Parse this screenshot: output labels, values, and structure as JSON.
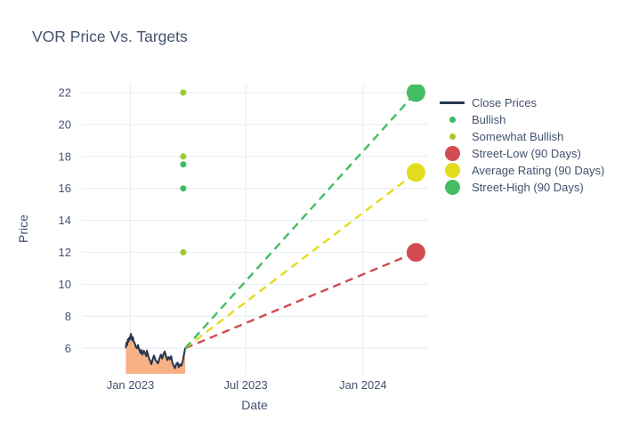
{
  "header": {
    "title": "VOR Price Vs. Targets"
  },
  "colors": {
    "text": "#42526e",
    "grid": "#e9eef6",
    "close_line": "#253650",
    "close_fill": "#f7b184",
    "bullish": "#3fbb5f",
    "somewhat_bullish": "#9fc929",
    "street_low": "#d24b51",
    "average_rating": "#e3dc1c",
    "street_high": "#42bd63"
  },
  "legend": {
    "items": [
      {
        "label": "Close Prices",
        "marker": "line",
        "color": "#253650"
      },
      {
        "label": "Bullish",
        "marker": "dot-small",
        "color": "#3fbb5f"
      },
      {
        "label": "Somewhat Bullish",
        "marker": "dot-small",
        "color": "#9fc929"
      },
      {
        "label": "Street-Low (90 Days)",
        "marker": "dot-large",
        "color": "#d24b51"
      },
      {
        "label": "Average Rating (90 Days)",
        "marker": "dot-large",
        "color": "#e3dc1c"
      },
      {
        "label": "Street-High (90 Days)",
        "marker": "dot-large",
        "color": "#42bd63"
      }
    ]
  },
  "chart_data": {
    "type": "line",
    "title": "VOR Price Vs. Targets",
    "xlabel": "Date",
    "ylabel": "Price",
    "grid": true,
    "legend_position": "right",
    "x_axis": {
      "unit": "days since 2023-01-01",
      "range": [
        -76,
        467
      ],
      "ticks": [
        {
          "label": "Jan 2023",
          "value": 0
        },
        {
          "label": "Jul 2023",
          "value": 181
        },
        {
          "label": "Jan 2024",
          "value": 365
        }
      ]
    },
    "y_axis": {
      "range": [
        4.4,
        22.5
      ],
      "ticks": [
        6,
        8,
        10,
        12,
        14,
        16,
        18,
        20,
        22
      ]
    },
    "close_prices": {
      "name": "Close Prices",
      "points": [
        [
          -7,
          6.05
        ],
        [
          -6,
          6.35
        ],
        [
          -5,
          6.2
        ],
        [
          -4,
          6.55
        ],
        [
          -3,
          6.4
        ],
        [
          -2,
          6.65
        ],
        [
          -1,
          6.55
        ],
        [
          0,
          6.75
        ],
        [
          1,
          6.9
        ],
        [
          2,
          6.6
        ],
        [
          3,
          6.5
        ],
        [
          4,
          6.7
        ],
        [
          5,
          6.45
        ],
        [
          7,
          6.3
        ],
        [
          9,
          6.05
        ],
        [
          11,
          6.0
        ],
        [
          12,
          6.2
        ],
        [
          14,
          5.9
        ],
        [
          16,
          5.7
        ],
        [
          17,
          5.9
        ],
        [
          19,
          5.6
        ],
        [
          21,
          5.85
        ],
        [
          23,
          5.7
        ],
        [
          25,
          5.5
        ],
        [
          26,
          5.85
        ],
        [
          28,
          5.55
        ],
        [
          30,
          5.3
        ],
        [
          32,
          5.1
        ],
        [
          33,
          5.0
        ],
        [
          35,
          5.3
        ],
        [
          37,
          5.55
        ],
        [
          39,
          5.3
        ],
        [
          41,
          5.2
        ],
        [
          43,
          5.05
        ],
        [
          44,
          5.1
        ],
        [
          46,
          5.4
        ],
        [
          48,
          5.6
        ],
        [
          50,
          5.35
        ],
        [
          52,
          5.65
        ],
        [
          54,
          5.8
        ],
        [
          56,
          5.5
        ],
        [
          58,
          5.25
        ],
        [
          60,
          5.45
        ],
        [
          62,
          5.3
        ],
        [
          64,
          5.5
        ],
        [
          66,
          5.1
        ],
        [
          68,
          4.9
        ],
        [
          70,
          4.75
        ],
        [
          72,
          5.0
        ],
        [
          74,
          5.1
        ],
        [
          76,
          4.8
        ],
        [
          78,
          5.0
        ],
        [
          80,
          4.9
        ],
        [
          82,
          5.15
        ],
        [
          84,
          5.6
        ],
        [
          86,
          6.0
        ]
      ]
    },
    "ratings": [
      {
        "name": "Bullish",
        "color_key": "bullish",
        "marker_size": 7,
        "points": [
          [
            83,
            17.5
          ],
          [
            83,
            16
          ]
        ]
      },
      {
        "name": "Somewhat Bullish",
        "color_key": "somewhat_bullish",
        "marker_size": 7,
        "points": [
          [
            83,
            22
          ],
          [
            83,
            18
          ],
          [
            83,
            12
          ]
        ]
      }
    ],
    "targets": [
      {
        "name": "Street-Low (90 Days)",
        "color_key": "street_low",
        "day": 448,
        "price": 12,
        "marker_size": 21,
        "connector_from": [
          86,
          6.0
        ]
      },
      {
        "name": "Average Rating (90 Days)",
        "color_key": "average_rating",
        "day": 448,
        "price": 17,
        "marker_size": 21,
        "connector_from": [
          86,
          6.0
        ]
      },
      {
        "name": "Street-High (90 Days)",
        "color_key": "street_high",
        "day": 448,
        "price": 22,
        "marker_size": 21,
        "connector_from": [
          86,
          6.0
        ]
      }
    ]
  }
}
